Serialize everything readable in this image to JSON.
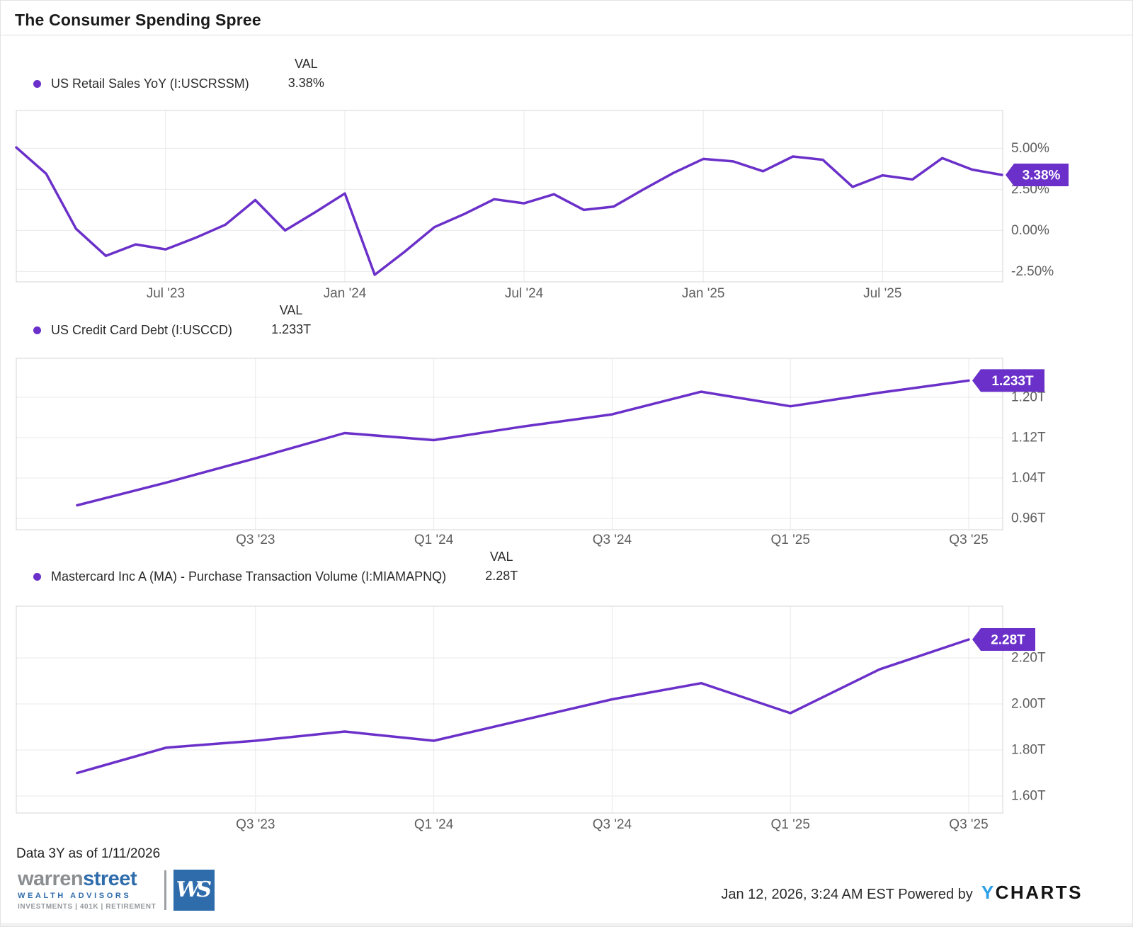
{
  "title": "The Consumer Spending Spree",
  "colors": {
    "accent_purple": "#6a30c9",
    "badge_text": "#ffffff",
    "grid_line": "#e9e9e9",
    "plot_border": "#d4d4d4",
    "axis_text": "#5e5e5e",
    "brand_blue": "#2f6cac",
    "brand_gray": "#8b8e90",
    "ycharts_blue": "#2b9fe8"
  },
  "chart_data": [
    {
      "type": "line",
      "name": "US Retail Sales YoY (I:USCRSSM)",
      "val_header": "VAL",
      "val": "3.38%",
      "frequency": "monthly",
      "x": [
        "Feb '23",
        "Mar '23",
        "Apr '23",
        "May '23",
        "Jun '23",
        "Jul '23",
        "Aug '23",
        "Sep '23",
        "Oct '23",
        "Nov '23",
        "Dec '23",
        "Jan '24",
        "Feb '24",
        "Mar '24",
        "Apr '24",
        "May '24",
        "Jun '24",
        "Jul '24",
        "Aug '24",
        "Sep '24",
        "Oct '24",
        "Nov '24",
        "Dec '24",
        "Jan '25",
        "Feb '25",
        "Mar '25",
        "Apr '25",
        "May '25",
        "Jun '25",
        "Jul '25",
        "Aug '25",
        "Sep '25",
        "Oct '25",
        "Nov '25"
      ],
      "values": [
        5.05,
        3.45,
        0.1,
        -1.55,
        -0.85,
        -1.15,
        -0.45,
        0.35,
        1.85,
        0.0,
        1.1,
        2.25,
        -2.7,
        -1.3,
        0.2,
        1.0,
        1.9,
        1.65,
        2.2,
        1.25,
        1.45,
        2.5,
        3.5,
        4.35,
        4.2,
        3.6,
        4.5,
        4.3,
        2.65,
        3.35,
        3.1,
        4.4,
        3.7,
        3.38
      ],
      "xticks": {
        "labels": [
          "Jul '23",
          "Jan '24",
          "Jul '24",
          "Jan '25",
          "Jul '25"
        ],
        "indices": [
          5,
          11,
          17,
          23,
          29
        ]
      },
      "yticks": {
        "labels": [
          "5.00%",
          "2.50%",
          "0.00%",
          "-2.50%"
        ],
        "values": [
          5,
          2.5,
          0,
          -2.5
        ]
      },
      "ylim": [
        -3.13,
        7.3
      ],
      "badge": "3.38%",
      "grid": true,
      "legend_position": "top-left"
    },
    {
      "type": "line",
      "name": "US Credit Card Debt (I:USCCD)",
      "val_header": "VAL",
      "val": "1.233T",
      "frequency": "quarterly",
      "x": [
        "Q1 '23",
        "Q2 '23",
        "Q3 '23",
        "Q4 '23",
        "Q1 '24",
        "Q2 '24",
        "Q3 '24",
        "Q4 '24",
        "Q1 '25",
        "Q2 '25",
        "Q3 '25"
      ],
      "values": [
        0.986,
        1.031,
        1.079,
        1.129,
        1.115,
        1.142,
        1.166,
        1.211,
        1.182,
        1.209,
        1.233
      ],
      "xticks": {
        "labels": [
          "Q3 '23",
          "Q1 '24",
          "Q3 '24",
          "Q1 '25",
          "Q3 '25"
        ],
        "indices": [
          2,
          4,
          6,
          8,
          10
        ]
      },
      "yticks": {
        "labels": [
          "1.20T",
          "1.12T",
          "1.04T",
          "0.96T"
        ],
        "values": [
          1.2,
          1.12,
          1.04,
          0.96
        ]
      },
      "ylim": [
        0.9376,
        1.277
      ],
      "badge": "1.233T",
      "grid": true,
      "legend_position": "top-left"
    },
    {
      "type": "line",
      "name": "Mastercard Inc A (MA) - Purchase Transaction Volume (I:MIAMAPNQ)",
      "val_header": "VAL",
      "val": "2.28T",
      "frequency": "quarterly",
      "x": [
        "Q1 '23",
        "Q2 '23",
        "Q3 '23",
        "Q4 '23",
        "Q1 '24",
        "Q2 '24",
        "Q3 '24",
        "Q4 '24",
        "Q1 '25",
        "Q2 '25",
        "Q3 '25"
      ],
      "values": [
        1.7,
        1.81,
        1.84,
        1.88,
        1.84,
        1.93,
        2.02,
        2.09,
        1.96,
        2.15,
        2.28
      ],
      "xticks": {
        "labels": [
          "Q3 '23",
          "Q1 '24",
          "Q3 '24",
          "Q1 '25",
          "Q3 '25"
        ],
        "indices": [
          2,
          4,
          6,
          8,
          10
        ]
      },
      "yticks": {
        "labels": [
          "2.20T",
          "2.00T",
          "1.80T",
          "1.60T"
        ],
        "values": [
          2.2,
          2.0,
          1.8,
          1.6
        ]
      },
      "ylim": [
        1.526,
        2.4246
      ],
      "badge": "2.28T",
      "grid": true,
      "legend_position": "top-left"
    }
  ],
  "footer": {
    "data_note": "Data 3Y as of 1/11/2026",
    "timestamp": "Jan 12, 2026, 3:24 AM EST",
    "powered_by": "Powered by",
    "ycharts_y": "Y",
    "ycharts_rest": "CHARTS"
  },
  "logo": {
    "brand_gray": "warren",
    "brand_blue": "street",
    "line2": "WEALTH ADVISORS",
    "line3": "INVESTMENTS | 401K | RETIREMENT",
    "monogram": "WS"
  }
}
